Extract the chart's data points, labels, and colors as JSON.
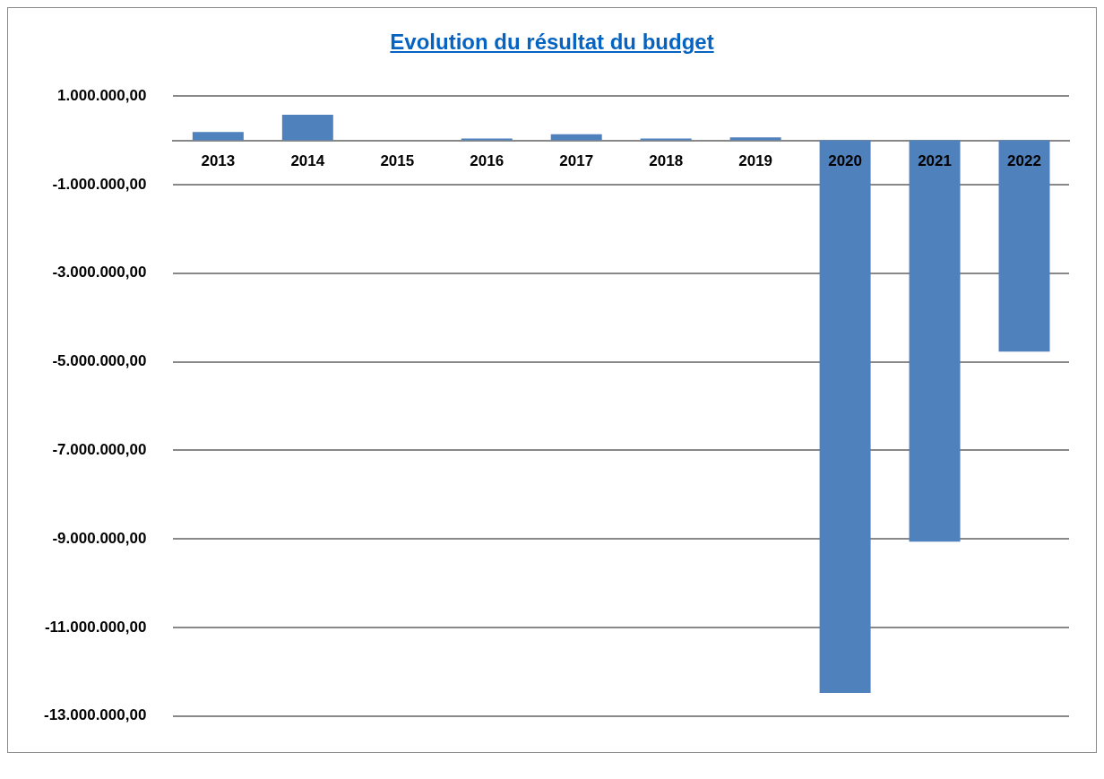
{
  "chart_data": {
    "type": "bar",
    "title": "Evolution du résultat du budget",
    "categories": [
      "2013",
      "2014",
      "2015",
      "2016",
      "2017",
      "2018",
      "2019",
      "2020",
      "2021",
      "2022"
    ],
    "values": [
      190000,
      580000,
      0,
      40000,
      140000,
      40000,
      70000,
      -12480000,
      -9060000,
      -4770000
    ],
    "color": "#4f81bd",
    "ylim": [
      -13000000,
      1000000
    ],
    "yticks": [
      {
        "value": -13000000,
        "label": "-13.000.000,00"
      },
      {
        "value": -11000000,
        "label": "-11.000.000,00"
      },
      {
        "value": -9000000,
        "label": "-9.000.000,00"
      },
      {
        "value": -7000000,
        "label": "-7.000.000,00"
      },
      {
        "value": -5000000,
        "label": "-5.000.000,00"
      },
      {
        "value": -3000000,
        "label": "-3.000.000,00"
      },
      {
        "value": -1000000,
        "label": "-1.000.000,00"
      },
      {
        "value": 1000000,
        "label": "1.000.000,00"
      }
    ],
    "grid": "y",
    "legend": false
  }
}
